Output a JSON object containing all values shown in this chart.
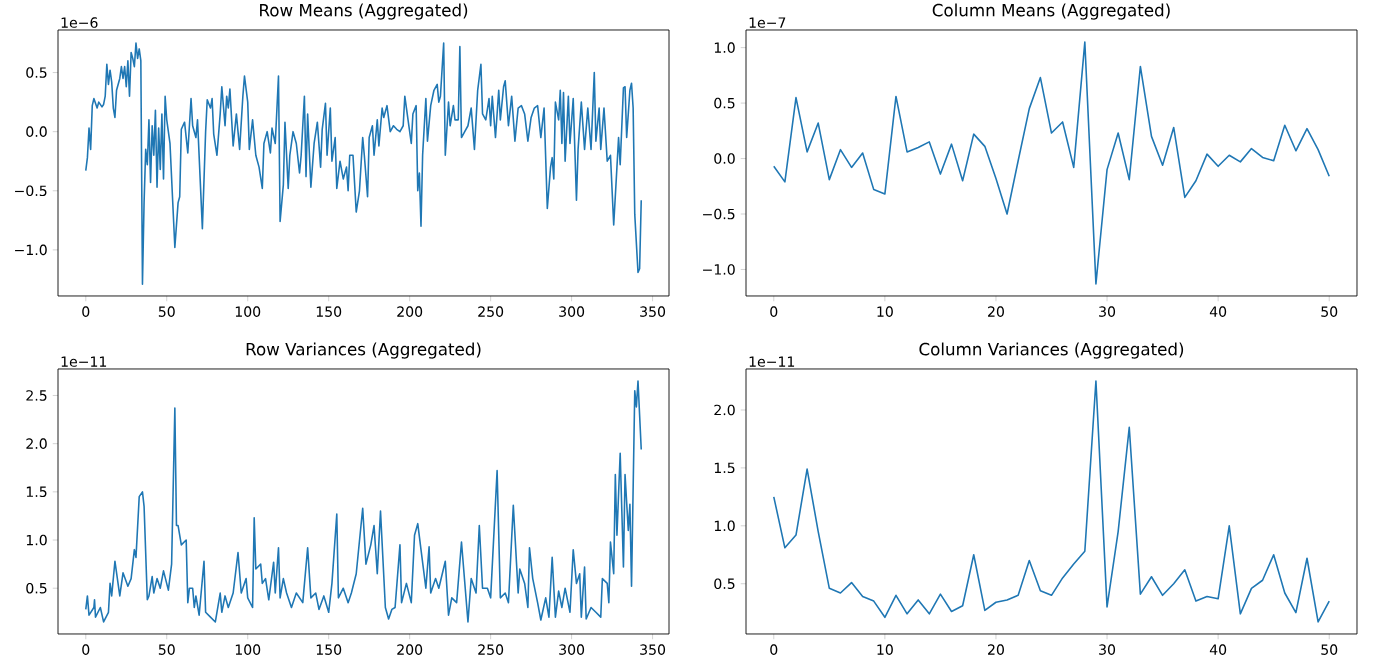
{
  "chart_data": [
    {
      "type": "line",
      "title": "Row Means (Aggregated)",
      "annotations": [
        "1e−6"
      ],
      "color": "#1f77b4",
      "xlim": [
        -17.15,
        360.15
      ],
      "ylim": [
        -1.39,
        0.86
      ],
      "xticks": [
        0,
        50,
        100,
        150,
        200,
        250,
        300,
        350
      ],
      "yticks": [
        {
          "value": -1.0,
          "label": "−1.0"
        },
        {
          "value": -0.5,
          "label": "−0.5"
        },
        {
          "value": 0,
          "label": "0.0"
        },
        {
          "value": 0.5,
          "label": "0.5"
        }
      ],
      "x": [
        0,
        1,
        2,
        3,
        4,
        5,
        7,
        8,
        10,
        11,
        12,
        13,
        14,
        15,
        16,
        17,
        18,
        19,
        21,
        22,
        23,
        24,
        25,
        26,
        27,
        28,
        29,
        30,
        31,
        32,
        33,
        34,
        35,
        36,
        37,
        38,
        39,
        40,
        41,
        42,
        43,
        44,
        45,
        46,
        47,
        48,
        49,
        50,
        52,
        55,
        57,
        58,
        59,
        61,
        63,
        65,
        66,
        68,
        69,
        72,
        74,
        75,
        77,
        78,
        79,
        81,
        83,
        84,
        86,
        87,
        88,
        89,
        91,
        93,
        95,
        97,
        98,
        100,
        101,
        103,
        105,
        107,
        109,
        110,
        112,
        114,
        115,
        117,
        119,
        120,
        122,
        123,
        125,
        126,
        128,
        130,
        132,
        133,
        135,
        136,
        137,
        139,
        141,
        143,
        145,
        146,
        148,
        149,
        151,
        152,
        154,
        155,
        157,
        159,
        161,
        162,
        163,
        165,
        167,
        169,
        171,
        172,
        174,
        175,
        177,
        178,
        180,
        181,
        183,
        184,
        186,
        188,
        190,
        192,
        194,
        196,
        197,
        199,
        201,
        202,
        204,
        205,
        206,
        207,
        208,
        210,
        211,
        213,
        215,
        217,
        218,
        219,
        221,
        222,
        224,
        225,
        227,
        228,
        230,
        231,
        232,
        234,
        236,
        238,
        240,
        242,
        244,
        245,
        247,
        249,
        250,
        251,
        253,
        255,
        256,
        258,
        259,
        261,
        263,
        265,
        267,
        269,
        271,
        273,
        275,
        277,
        279,
        281,
        283,
        285,
        287,
        288,
        289,
        290,
        292,
        293,
        294,
        295,
        296,
        298,
        299,
        301,
        303,
        304,
        306,
        308,
        310,
        312,
        314,
        315,
        317,
        318,
        320,
        322,
        324,
        326,
        328,
        329,
        330,
        332,
        333,
        334,
        336,
        337,
        338,
        339,
        341,
        342,
        343
      ],
      "values": [
        -0.33,
        -0.22,
        0.03,
        -0.15,
        0.22,
        0.28,
        0.2,
        0.25,
        0.21,
        0.23,
        0.3,
        0.57,
        0.4,
        0.52,
        0.42,
        0.2,
        0.12,
        0.35,
        0.45,
        0.55,
        0.45,
        0.55,
        0.38,
        0.6,
        0.3,
        0.67,
        0.62,
        0.55,
        0.75,
        0.62,
        0.7,
        0.6,
        -1.29,
        -0.6,
        -0.15,
        -0.28,
        0.1,
        -0.43,
        0.05,
        -0.2,
        0.18,
        -0.47,
        0.03,
        -0.32,
        0.15,
        -0.4,
        0.3,
        0.1,
        -0.1,
        -0.98,
        -0.6,
        -0.55,
        0.02,
        0.08,
        -0.18,
        0.28,
        0.05,
        -0.05,
        0.1,
        -0.82,
        0.0,
        0.27,
        0.2,
        0.28,
        -0.02,
        -0.2,
        0.15,
        0.38,
        0.05,
        0.3,
        0.2,
        0.36,
        -0.12,
        0.15,
        -0.15,
        0.3,
        0.47,
        0.25,
        -0.15,
        0.1,
        -0.2,
        -0.3,
        -0.48,
        -0.1,
        0.0,
        -0.18,
        0.03,
        -0.1,
        0.47,
        -0.76,
        -0.45,
        0.08,
        -0.48,
        -0.2,
        0.0,
        -0.1,
        -0.35,
        -0.2,
        0.3,
        -0.38,
        0.15,
        -0.47,
        -0.1,
        0.08,
        -0.3,
        0.02,
        0.24,
        -0.2,
        0.2,
        -0.25,
        -0.05,
        -0.48,
        -0.25,
        -0.4,
        -0.3,
        -0.5,
        -0.2,
        -0.2,
        -0.68,
        -0.5,
        -0.05,
        -0.2,
        -0.55,
        -0.05,
        0.05,
        -0.2,
        0.1,
        -0.12,
        0.2,
        0.12,
        0.22,
        0.0,
        0.05,
        0.02,
        0.0,
        0.05,
        0.3,
        0.1,
        -0.1,
        0.15,
        0.22,
        -0.5,
        -0.35,
        -0.8,
        -0.2,
        0.28,
        -0.08,
        0.22,
        0.35,
        0.4,
        0.25,
        0.3,
        0.75,
        -0.2,
        0.25,
        0.05,
        0.22,
        0.1,
        0.1,
        0.72,
        -0.05,
        0.0,
        0.05,
        0.2,
        -0.15,
        0.35,
        0.57,
        0.15,
        0.1,
        0.28,
        0.05,
        0.3,
        -0.05,
        0.35,
        0.1,
        0.38,
        0.43,
        0.05,
        0.3,
        -0.08,
        0.2,
        0.22,
        0.15,
        -0.08,
        0.12,
        0.2,
        0.22,
        -0.05,
        0.2,
        -0.65,
        -0.3,
        -0.22,
        -0.4,
        0.25,
        0.1,
        0.35,
        -0.1,
        0.33,
        -0.25,
        0.3,
        -0.1,
        0.28,
        -0.58,
        -0.15,
        0.25,
        -0.15,
        0.2,
        -0.15,
        0.5,
        -0.08,
        0.2,
        -0.15,
        0.2,
        -0.25,
        -0.2,
        -0.79,
        -0.3,
        -0.05,
        -0.28,
        0.37,
        0.38,
        -0.05,
        0.35,
        0.41,
        0.2,
        -0.7,
        -1.19,
        -1.16,
        -0.58
      ]
    },
    {
      "type": "line",
      "title": "Column Means (Aggregated)",
      "annotations": [
        "1e−7"
      ],
      "color": "#1f77b4",
      "xlim": [
        -2.5,
        52.5
      ],
      "ylim": [
        -1.239,
        1.159
      ],
      "xticks": [
        0,
        10,
        20,
        30,
        40,
        50
      ],
      "yticks": [
        {
          "value": -1.0,
          "label": "−1.0"
        },
        {
          "value": -0.5,
          "label": "−0.5"
        },
        {
          "value": 0,
          "label": "0.0"
        },
        {
          "value": 0.5,
          "label": "0.5"
        },
        {
          "value": 1.0,
          "label": "1.0"
        }
      ],
      "x": [
        0,
        1,
        2,
        3,
        4,
        5,
        6,
        7,
        8,
        9,
        10,
        11,
        12,
        13,
        14,
        15,
        16,
        17,
        18,
        19,
        20,
        21,
        22,
        23,
        24,
        25,
        26,
        27,
        28,
        29,
        30,
        31,
        32,
        33,
        34,
        35,
        36,
        37,
        38,
        39,
        40,
        41,
        42,
        43,
        44,
        45,
        46,
        47,
        48,
        49,
        50
      ],
      "values": [
        -0.07,
        -0.21,
        0.55,
        0.06,
        0.32,
        -0.19,
        0.08,
        -0.08,
        0.05,
        -0.28,
        -0.32,
        0.56,
        0.06,
        0.1,
        0.15,
        -0.14,
        0.13,
        -0.2,
        0.22,
        0.11,
        -0.18,
        -0.5,
        -0.02,
        0.45,
        0.73,
        0.23,
        0.33,
        -0.08,
        1.05,
        -1.13,
        -0.1,
        0.23,
        -0.19,
        0.83,
        0.2,
        -0.06,
        0.28,
        -0.35,
        -0.2,
        0.04,
        -0.07,
        0.03,
        -0.03,
        0.09,
        0.01,
        -0.02,
        0.3,
        0.07,
        0.27,
        0.08,
        -0.16
      ]
    },
    {
      "type": "line",
      "title": "Row Variances (Aggregated)",
      "annotations": [
        "1e−11"
      ],
      "color": "#1f77b4",
      "xlim": [
        -17.15,
        360.15
      ],
      "ylim": [
        0.025,
        2.775
      ],
      "xticks": [
        0,
        50,
        100,
        150,
        200,
        250,
        300,
        350
      ],
      "yticks": [
        {
          "value": 0.5,
          "label": "0.5"
        },
        {
          "value": 1.0,
          "label": "1.0"
        },
        {
          "value": 1.5,
          "label": "1.5"
        },
        {
          "value": 2.0,
          "label": "2.0"
        },
        {
          "value": 2.5,
          "label": "2.5"
        }
      ],
      "x": [
        0,
        1,
        2,
        5,
        5.4,
        6,
        9,
        11,
        14,
        15,
        16,
        18,
        21,
        23,
        26,
        28,
        30,
        31,
        33,
        35,
        36,
        38,
        39,
        41,
        42,
        44,
        46,
        48,
        51,
        53,
        55,
        56,
        57,
        59,
        62,
        63,
        64,
        66,
        67,
        68,
        70,
        73,
        74,
        77,
        80,
        83,
        84,
        86,
        88,
        91,
        94,
        96,
        99,
        100,
        103,
        104,
        105,
        108,
        109,
        111,
        113,
        116,
        117,
        119,
        120,
        122,
        124,
        127,
        130,
        134,
        137,
        139,
        142,
        144,
        147,
        150,
        152,
        155,
        156,
        159,
        162,
        164,
        167,
        171,
        173,
        176,
        178,
        180,
        182,
        185,
        187,
        189,
        191,
        194,
        195,
        198,
        201,
        203,
        205,
        207,
        210,
        212,
        213,
        216,
        218,
        222,
        224,
        226,
        229,
        232,
        236,
        238,
        241,
        243,
        245,
        248,
        250,
        254,
        256,
        259,
        261,
        264,
        267,
        268,
        271,
        273,
        274,
        276,
        279,
        281,
        284,
        286,
        288,
        290,
        292,
        294,
        296,
        299,
        301,
        303,
        305,
        306,
        308,
        309,
        312,
        315,
        318,
        319,
        322,
        323,
        324,
        326,
        327,
        328,
        330,
        332,
        333,
        335,
        336,
        337,
        339,
        340,
        341,
        343
      ],
      "values": [
        0.28,
        0.42,
        0.22,
        0.3,
        0.38,
        0.2,
        0.3,
        0.15,
        0.25,
        0.55,
        0.42,
        0.78,
        0.42,
        0.66,
        0.52,
        0.6,
        0.9,
        0.82,
        1.45,
        1.5,
        1.35,
        0.38,
        0.42,
        0.62,
        0.45,
        0.6,
        0.5,
        0.68,
        0.48,
        0.75,
        2.37,
        1.15,
        1.15,
        0.95,
        1.0,
        0.35,
        0.5,
        0.5,
        0.3,
        0.42,
        0.22,
        0.78,
        0.25,
        0.2,
        0.15,
        0.45,
        0.25,
        0.42,
        0.3,
        0.45,
        0.87,
        0.45,
        0.6,
        0.4,
        0.3,
        1.23,
        0.7,
        0.75,
        0.55,
        0.6,
        0.38,
        0.77,
        0.45,
        0.92,
        0.4,
        0.6,
        0.45,
        0.3,
        0.45,
        0.35,
        0.92,
        0.4,
        0.45,
        0.28,
        0.42,
        0.25,
        0.55,
        1.27,
        0.4,
        0.5,
        0.35,
        0.45,
        0.65,
        1.33,
        0.75,
        0.95,
        1.15,
        0.65,
        1.3,
        0.3,
        0.18,
        0.28,
        0.3,
        0.95,
        0.35,
        0.55,
        0.35,
        1.05,
        1.17,
        0.9,
        0.5,
        0.93,
        0.45,
        0.6,
        0.5,
        0.78,
        0.22,
        0.4,
        0.35,
        0.98,
        0.15,
        0.6,
        0.45,
        1.15,
        0.5,
        0.5,
        0.4,
        1.72,
        0.4,
        0.45,
        0.35,
        1.36,
        0.45,
        0.7,
        0.55,
        0.3,
        0.92,
        0.6,
        0.35,
        0.17,
        0.4,
        0.2,
        0.82,
        0.2,
        0.47,
        0.3,
        0.5,
        0.25,
        0.9,
        0.55,
        0.65,
        0.2,
        0.72,
        0.18,
        0.3,
        0.25,
        0.2,
        0.6,
        0.55,
        0.35,
        0.98,
        0.65,
        1.68,
        1.05,
        1.9,
        0.72,
        1.68,
        1.1,
        1.37,
        0.52,
        2.55,
        2.38,
        2.65,
        1.94
      ]
    },
    {
      "type": "line",
      "title": "Column Variances (Aggregated)",
      "annotations": [
        "1e−11"
      ],
      "color": "#1f77b4",
      "xlim": [
        -2.5,
        52.5
      ],
      "ylim": [
        0.066,
        2.354
      ],
      "xticks": [
        0,
        10,
        20,
        30,
        40,
        50
      ],
      "yticks": [
        {
          "value": 0.5,
          "label": "0.5"
        },
        {
          "value": 1.0,
          "label": "1.0"
        },
        {
          "value": 1.5,
          "label": "1.5"
        },
        {
          "value": 2.0,
          "label": "2.0"
        }
      ],
      "x": [
        0,
        1,
        2,
        3,
        4,
        5,
        6,
        7,
        8,
        9,
        10,
        11,
        12,
        13,
        14,
        15,
        16,
        17,
        18,
        19,
        20,
        21,
        22,
        23,
        24,
        25,
        26,
        27,
        28,
        29,
        30,
        31,
        32,
        33,
        34,
        35,
        36,
        37,
        38,
        39,
        40,
        41,
        42,
        43,
        44,
        45,
        46,
        47,
        48,
        49,
        50
      ],
      "values": [
        1.25,
        0.81,
        0.92,
        1.49,
        0.95,
        0.46,
        0.42,
        0.51,
        0.39,
        0.35,
        0.21,
        0.4,
        0.24,
        0.36,
        0.24,
        0.41,
        0.26,
        0.31,
        0.75,
        0.27,
        0.34,
        0.36,
        0.4,
        0.7,
        0.44,
        0.4,
        0.55,
        0.67,
        0.78,
        2.25,
        0.3,
        0.95,
        1.85,
        0.41,
        0.56,
        0.4,
        0.5,
        0.62,
        0.35,
        0.39,
        0.37,
        1.0,
        0.24,
        0.46,
        0.53,
        0.75,
        0.42,
        0.25,
        0.72,
        0.17,
        0.35
      ]
    }
  ]
}
